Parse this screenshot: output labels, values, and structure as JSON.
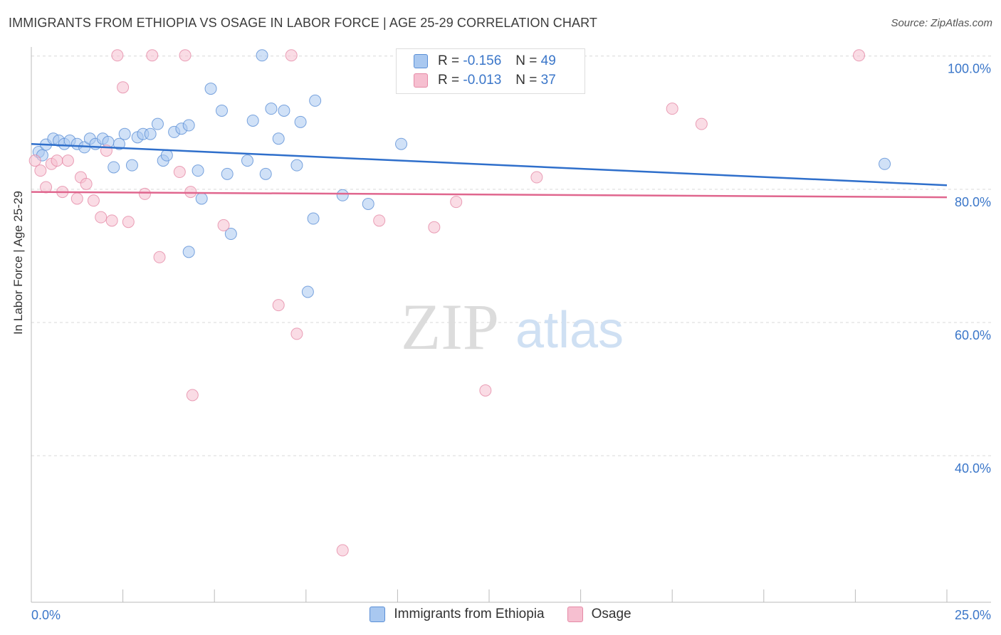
{
  "title": "IMMIGRANTS FROM ETHIOPIA VS OSAGE IN LABOR FORCE | AGE 25-29 CORRELATION CHART",
  "source": "Source: ZipAtlas.com",
  "watermark": {
    "zip": "ZIP",
    "atlas": "atlas"
  },
  "colors": {
    "blue_fill": "#a9c8f0",
    "blue_stroke": "#5b8fd6",
    "blue_line": "#2f6fcb",
    "pink_fill": "#f6bfd0",
    "pink_stroke": "#e58aa6",
    "pink_line": "#e0668e",
    "tick_label": "#3a76c9",
    "grid": "#d9d9d9"
  },
  "stats": [
    {
      "r_label": "R =",
      "r_value": "-0.156",
      "n_label": "N =",
      "n_value": "49",
      "color": "blue"
    },
    {
      "r_label": "R =",
      "r_value": "-0.013",
      "n_label": "N =",
      "n_value": "37",
      "color": "pink"
    }
  ],
  "chart_data": {
    "type": "scatter",
    "title": "IMMIGRANTS FROM ETHIOPIA VS OSAGE IN LABOR FORCE | AGE 25-29 CORRELATION CHART",
    "xlabel": "",
    "ylabel": "In Labor Force | Age 25-29",
    "xlim": [
      0,
      25
    ],
    "ylim": [
      18,
      102
    ],
    "x_tick_labels": {
      "left": "0.0%",
      "right": "25.0%"
    },
    "y_ticks": [
      {
        "value": 100,
        "label": "100.0%"
      },
      {
        "value": 80,
        "label": "80.0%"
      },
      {
        "value": 60,
        "label": "60.0%"
      },
      {
        "value": 40,
        "label": "40.0%"
      }
    ],
    "series": [
      {
        "name": "Immigrants from Ethiopia",
        "color": "blue",
        "trend": {
          "x0": 0,
          "y0": 86.8,
          "x1": 25,
          "y1": 80.6
        },
        "points": [
          [
            0.2,
            85.6
          ],
          [
            0.3,
            85.1
          ],
          [
            0.4,
            86.7
          ],
          [
            0.6,
            87.6
          ],
          [
            0.75,
            87.3
          ],
          [
            0.9,
            86.8
          ],
          [
            1.05,
            87.3
          ],
          [
            1.25,
            86.8
          ],
          [
            1.45,
            86.3
          ],
          [
            1.6,
            87.6
          ],
          [
            1.75,
            86.8
          ],
          [
            1.95,
            87.6
          ],
          [
            2.1,
            87.1
          ],
          [
            2.25,
            83.3
          ],
          [
            2.4,
            86.8
          ],
          [
            2.55,
            88.3
          ],
          [
            2.75,
            83.6
          ],
          [
            2.9,
            87.8
          ],
          [
            3.05,
            88.3
          ],
          [
            3.25,
            88.3
          ],
          [
            3.45,
            89.8
          ],
          [
            3.6,
            84.3
          ],
          [
            3.7,
            85.1
          ],
          [
            3.9,
            88.6
          ],
          [
            4.1,
            89.1
          ],
          [
            4.3,
            89.6
          ],
          [
            4.3,
            70.6
          ],
          [
            4.55,
            82.8
          ],
          [
            4.65,
            78.6
          ],
          [
            4.9,
            95.1
          ],
          [
            5.2,
            91.8
          ],
          [
            5.35,
            82.3
          ],
          [
            5.45,
            73.3
          ],
          [
            5.9,
            84.3
          ],
          [
            6.05,
            90.3
          ],
          [
            6.3,
            100.1
          ],
          [
            6.4,
            82.3
          ],
          [
            6.55,
            92.1
          ],
          [
            6.75,
            87.6
          ],
          [
            6.9,
            91.8
          ],
          [
            7.25,
            83.6
          ],
          [
            7.35,
            90.1
          ],
          [
            7.55,
            64.6
          ],
          [
            7.7,
            75.6
          ],
          [
            7.75,
            93.3
          ],
          [
            8.5,
            79.1
          ],
          [
            9.2,
            77.8
          ],
          [
            10.1,
            86.8
          ],
          [
            23.3,
            83.8
          ]
        ]
      },
      {
        "name": "Osage",
        "color": "pink",
        "trend": {
          "x0": 0,
          "y0": 79.6,
          "x1": 25,
          "y1": 78.8
        },
        "points": [
          [
            0.1,
            84.3
          ],
          [
            0.25,
            82.8
          ],
          [
            0.4,
            80.3
          ],
          [
            0.55,
            83.8
          ],
          [
            0.7,
            84.3
          ],
          [
            0.85,
            79.6
          ],
          [
            1.0,
            84.3
          ],
          [
            1.25,
            78.6
          ],
          [
            1.35,
            81.8
          ],
          [
            1.5,
            80.8
          ],
          [
            1.7,
            78.3
          ],
          [
            1.9,
            75.8
          ],
          [
            2.05,
            85.8
          ],
          [
            2.2,
            75.3
          ],
          [
            2.35,
            100.1
          ],
          [
            2.5,
            95.3
          ],
          [
            2.65,
            75.1
          ],
          [
            3.1,
            79.3
          ],
          [
            3.3,
            100.1
          ],
          [
            3.5,
            69.8
          ],
          [
            4.05,
            82.6
          ],
          [
            4.2,
            100.1
          ],
          [
            4.35,
            79.6
          ],
          [
            4.4,
            49.1
          ],
          [
            5.25,
            74.6
          ],
          [
            6.75,
            62.6
          ],
          [
            7.1,
            100.1
          ],
          [
            7.25,
            58.3
          ],
          [
            8.5,
            25.8
          ],
          [
            9.5,
            75.3
          ],
          [
            11.0,
            74.3
          ],
          [
            11.6,
            78.1
          ],
          [
            12.4,
            49.8
          ],
          [
            13.8,
            81.8
          ],
          [
            17.5,
            92.1
          ],
          [
            18.3,
            89.8
          ],
          [
            22.6,
            100.1
          ]
        ]
      }
    ]
  },
  "legend": [
    {
      "label": "Immigrants from Ethiopia",
      "color": "blue"
    },
    {
      "label": "Osage",
      "color": "pink"
    }
  ]
}
